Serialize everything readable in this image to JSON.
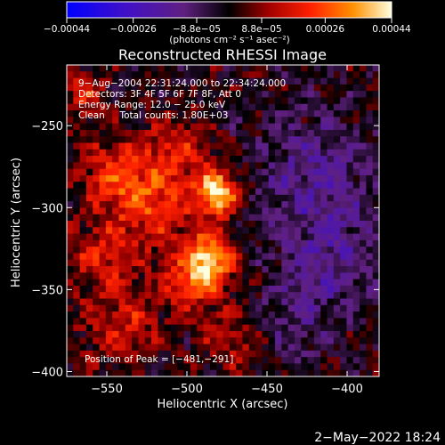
{
  "chart_data": {
    "type": "heatmap",
    "title": "Reconstructed RHESSI Image",
    "xlabel": "Heliocentric X (arcsec)",
    "ylabel": "Heliocentric Y (arcsec)",
    "xlim": [
      -575,
      -380
    ],
    "ylim": [
      -403,
      -213
    ],
    "x_ticks": [
      -550,
      -500,
      -450,
      -400
    ],
    "x_tick_labels": [
      "−550",
      "−500",
      "−450",
      "−400"
    ],
    "y_ticks": [
      -250,
      -300,
      -350,
      -400
    ],
    "y_tick_labels": [
      "−250",
      "−300",
      "−350",
      "−400"
    ],
    "colorbar": {
      "min": -0.00044,
      "max": 0.00044,
      "ticks": [
        -0.00044,
        -0.00026,
        -8.8e-05,
        8.8e-05,
        0.00026,
        0.00044
      ],
      "tick_labels": [
        "−0.00044",
        "−0.00026",
        "−8.8e−05",
        "8.8e−05",
        "0.00026",
        "0.00044"
      ],
      "unit_label": "(photons cm⁻² s⁻¹ asec⁻²)"
    },
    "annotations": [
      "9−Aug−2004 22:31:24.000 to 22:34:24.000",
      "Detectors: 3F 4F 5F 6F 7F 8F, Att 0",
      "Energy Range: 12.0 − 25.0 keV",
      "Clean     Total counts: 1.80E+03"
    ],
    "peak_label": "Position of Peak = [−481,−291]",
    "peak": [
      -481,
      -291
    ],
    "sources": [
      {
        "x": -481,
        "y": -291,
        "amp": 1.0,
        "sigma": 9
      },
      {
        "x": -485,
        "y": -330,
        "amp": 0.75,
        "sigma": 11
      },
      {
        "x": -495,
        "y": -345,
        "amp": 0.55,
        "sigma": 12
      },
      {
        "x": -520,
        "y": -300,
        "amp": 0.45,
        "sigma": 18
      },
      {
        "x": -545,
        "y": -280,
        "amp": 0.45,
        "sigma": 16
      },
      {
        "x": -505,
        "y": -265,
        "amp": 0.4,
        "sigma": 14
      },
      {
        "x": -555,
        "y": -330,
        "amp": 0.35,
        "sigma": 15
      },
      {
        "x": -540,
        "y": -370,
        "amp": 0.35,
        "sigma": 18
      },
      {
        "x": -470,
        "y": -380,
        "amp": 0.3,
        "sigma": 14
      },
      {
        "x": -565,
        "y": -230,
        "amp": 0.4,
        "sigma": 10
      },
      {
        "x": -420,
        "y": -280,
        "amp": -0.35,
        "sigma": 25
      },
      {
        "x": -410,
        "y": -330,
        "amp": -0.3,
        "sigma": 22
      },
      {
        "x": -435,
        "y": -370,
        "amp": -0.2,
        "sigma": 20
      }
    ]
  },
  "footer": {
    "date": "2−May−2022 18:24"
  }
}
